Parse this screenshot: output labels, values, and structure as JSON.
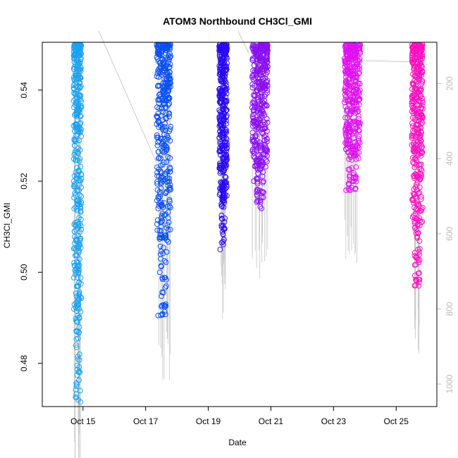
{
  "chart_data": {
    "type": "scatter",
    "title": "ATOM3 Northbound CH3Cl_GMI",
    "xlabel": "Date",
    "ylabel": "CH3Cl_GMI",
    "x_ticks": [
      "Oct 15",
      "Oct 17",
      "Oct 19",
      "Oct 21",
      "Oct 23",
      "Oct 25"
    ],
    "y_ticks": [
      "0.48",
      "0.50",
      "0.52",
      "0.54"
    ],
    "y_right_ticks": [
      "200",
      "400",
      "600",
      "800",
      "1000"
    ],
    "xlim_days": [
      13.7,
      26.3
    ],
    "ylim": [
      0.4705,
      0.5505
    ],
    "y_right_lim": [
      90,
      1060
    ],
    "grid": false,
    "legend": "none",
    "series": [
      {
        "segment": 1,
        "color": "#1aa2f0",
        "x_day_range": [
          14.7,
          14.95
        ],
        "y_range": [
          0.4715,
          0.55
        ],
        "points": [
          [
            14.72,
            0.545
          ],
          [
            14.75,
            0.538
          ],
          [
            14.78,
            0.53
          ],
          [
            14.8,
            0.523
          ],
          [
            14.82,
            0.515
          ],
          [
            14.85,
            0.508
          ],
          [
            14.86,
            0.5
          ],
          [
            14.87,
            0.495
          ],
          [
            14.88,
            0.488
          ],
          [
            14.89,
            0.482
          ],
          [
            14.9,
            0.478
          ],
          [
            14.91,
            0.474
          ],
          [
            14.92,
            0.4715
          ]
        ]
      },
      {
        "segment": 2,
        "color": "#0a4ff2",
        "x_day_range": [
          17.35,
          17.8
        ],
        "y_range": [
          0.4905,
          0.55
        ],
        "points": [
          [
            17.4,
            0.4905
          ],
          [
            17.45,
            0.5
          ],
          [
            17.5,
            0.51
          ],
          [
            17.55,
            0.52
          ],
          [
            17.6,
            0.528
          ],
          [
            17.65,
            0.535
          ],
          [
            17.7,
            0.54
          ],
          [
            17.75,
            0.545
          ],
          [
            17.78,
            0.55
          ]
        ]
      },
      {
        "segment": 3,
        "color": "#2a0af0",
        "x_day_range": [
          19.35,
          19.6
        ],
        "y_range": [
          0.505,
          0.55
        ],
        "points": [
          [
            19.38,
            0.505
          ],
          [
            19.42,
            0.515
          ],
          [
            19.46,
            0.525
          ],
          [
            19.5,
            0.535
          ],
          [
            19.55,
            0.545
          ],
          [
            19.58,
            0.55
          ]
        ]
      },
      {
        "segment": 4,
        "color": "#8a10f0",
        "x_day_range": [
          20.4,
          20.9
        ],
        "y_range": [
          0.514,
          0.55
        ],
        "points": [
          [
            20.45,
            0.52
          ],
          [
            20.5,
            0.53
          ],
          [
            20.55,
            0.54
          ],
          [
            20.6,
            0.535
          ],
          [
            20.65,
            0.525
          ],
          [
            20.7,
            0.514
          ],
          [
            20.8,
            0.545
          ],
          [
            20.88,
            0.55
          ]
        ]
      },
      {
        "segment": 5,
        "color": "#e010f0",
        "x_day_range": [
          23.35,
          23.85
        ],
        "y_range": [
          0.518,
          0.55
        ],
        "points": [
          [
            23.4,
            0.518
          ],
          [
            23.45,
            0.528
          ],
          [
            23.5,
            0.538
          ],
          [
            23.6,
            0.545
          ],
          [
            23.7,
            0.535
          ],
          [
            23.8,
            0.525
          ],
          [
            23.85,
            0.55
          ]
        ]
      },
      {
        "segment": 6,
        "color": "#ff10c0",
        "x_day_range": [
          25.5,
          25.85
        ],
        "y_range": [
          0.497,
          0.55
        ],
        "points": [
          [
            25.55,
            0.535
          ],
          [
            25.6,
            0.525
          ],
          [
            25.65,
            0.515
          ],
          [
            25.7,
            0.505
          ],
          [
            25.72,
            0.497
          ],
          [
            25.78,
            0.53
          ],
          [
            25.84,
            0.55
          ]
        ]
      }
    ]
  }
}
